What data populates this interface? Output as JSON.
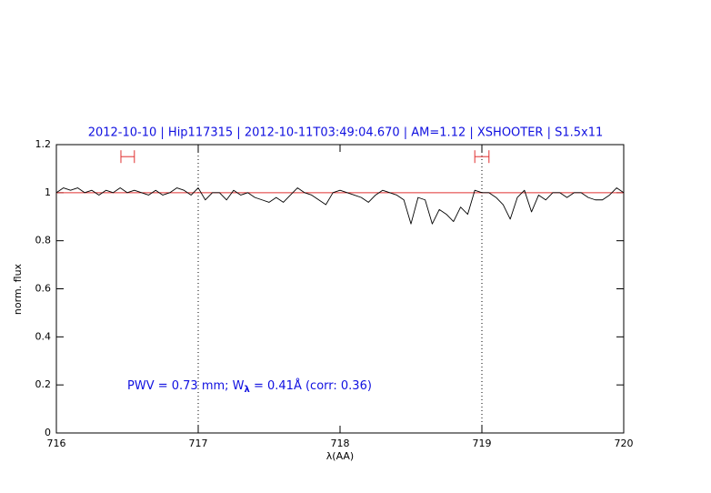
{
  "chart_data": {
    "type": "line",
    "title": "2012-10-10 | Hip117315 | 2012-10-11T03:49:04.670 | AM=1.12 | XSHOOTER | S1.5x11",
    "x_label": "λ(AA)",
    "y_label": "norm. flux",
    "annotation": {
      "before": "PWV = 0.73 mm; W",
      "sub": "λ",
      "after": " = 0.41Å (corr: 0.36)"
    },
    "xlim": [
      716,
      720
    ],
    "ylim": [
      0,
      1.2
    ],
    "xticks": [
      716,
      717,
      718,
      719,
      720
    ],
    "yticks": [
      0,
      0.2,
      0.4,
      0.6,
      0.8,
      1,
      1.2
    ],
    "color": "#000000",
    "continuum": 1,
    "continuum_color": "#e03030",
    "vlines": [
      717,
      719
    ],
    "windows": [
      {
        "x": [
          716.455,
          716.55
        ],
        "y": 1.15
      },
      {
        "x": [
          718.95,
          719.05
        ],
        "y": 1.15
      }
    ],
    "window_color": "#e03030",
    "x": [
      716.0,
      716.05,
      716.1,
      716.15,
      716.2,
      716.25,
      716.3,
      716.35,
      716.4,
      716.45,
      716.5,
      716.55,
      716.6,
      716.65,
      716.7,
      716.75,
      716.8,
      716.85,
      716.9,
      716.95,
      717.0,
      717.05,
      717.1,
      717.15,
      717.2,
      717.25,
      717.3,
      717.35,
      717.4,
      717.45,
      717.5,
      717.55,
      717.6,
      717.65,
      717.7,
      717.75,
      717.8,
      717.85,
      717.9,
      717.95,
      718.0,
      718.05,
      718.1,
      718.15,
      718.2,
      718.25,
      718.3,
      718.35,
      718.4,
      718.45,
      718.5,
      718.55,
      718.6,
      718.65,
      718.7,
      718.75,
      718.8,
      718.85,
      718.9,
      718.95,
      719.0,
      719.05,
      719.1,
      719.15,
      719.2,
      719.25,
      719.3,
      719.35,
      719.4,
      719.45,
      719.5,
      719.55,
      719.6,
      719.65,
      719.7,
      719.75,
      719.8,
      719.85,
      719.9,
      719.95,
      720.0
    ],
    "values": [
      1.0,
      1.02,
      1.01,
      1.02,
      1.0,
      1.01,
      0.99,
      1.01,
      1.0,
      1.02,
      1.0,
      1.01,
      1.0,
      0.99,
      1.01,
      0.99,
      1.0,
      1.02,
      1.01,
      0.99,
      1.02,
      0.97,
      1.0,
      1.0,
      0.97,
      1.01,
      0.99,
      1.0,
      0.98,
      0.97,
      0.96,
      0.98,
      0.96,
      0.99,
      1.02,
      1.0,
      0.99,
      0.97,
      0.95,
      1.0,
      1.01,
      1.0,
      0.99,
      0.98,
      0.96,
      0.99,
      1.01,
      1.0,
      0.99,
      0.97,
      0.87,
      0.98,
      0.97,
      0.87,
      0.93,
      0.91,
      0.88,
      0.94,
      0.91,
      1.01,
      1.0,
      1.0,
      0.98,
      0.95,
      0.89,
      0.98,
      1.01,
      0.92,
      0.99,
      0.97,
      1.0,
      1.0,
      0.98,
      1.0,
      1.0,
      0.98,
      0.97,
      0.97,
      0.99,
      1.02,
      1.0
    ]
  }
}
